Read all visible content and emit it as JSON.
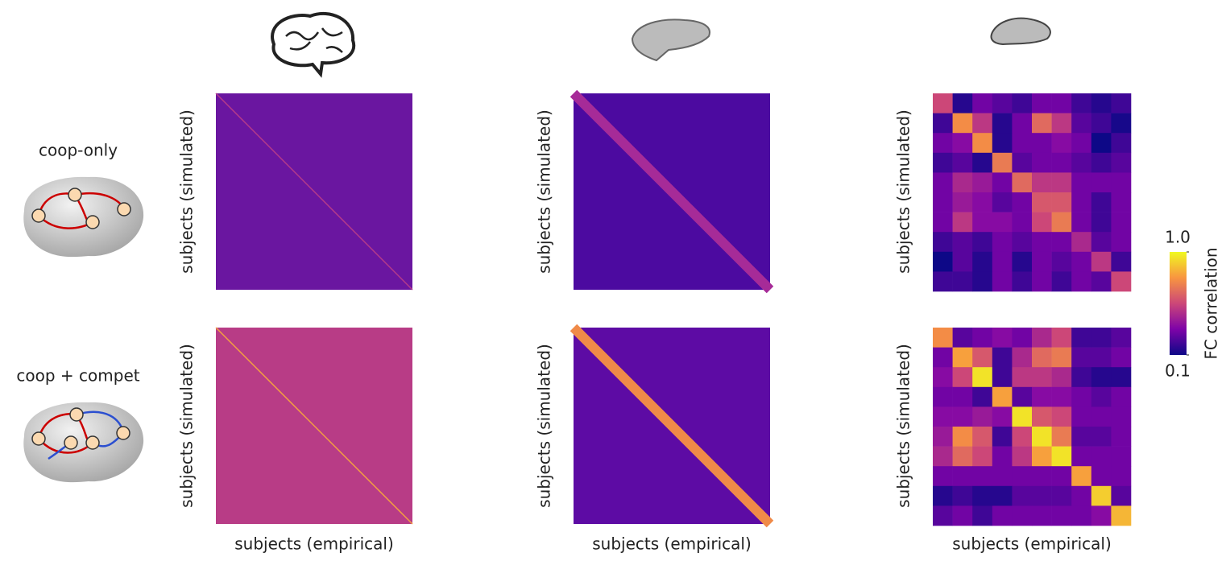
{
  "rows": [
    "coop-only",
    "coop + compet"
  ],
  "x_label": "subjects (empirical)",
  "y_label": "subjects (simulated)",
  "colorbar": {
    "label": "FC correlation",
    "lim": [
      0.1,
      1.0
    ],
    "ticks": [
      0.1,
      {
        "value": 1.0,
        "label": "1.0"
      }
    ]
  },
  "chart_data": [
    {
      "type": "heatmap",
      "values": [
        [
          0.55,
          0.15,
          0.3,
          0.25,
          0.2,
          0.3,
          0.3,
          0.2,
          0.15,
          0.2
        ],
        [
          0.2,
          0.75,
          0.5,
          0.15,
          0.3,
          0.65,
          0.5,
          0.25,
          0.2,
          0.12
        ],
        [
          0.3,
          0.35,
          0.75,
          0.15,
          0.3,
          0.3,
          0.35,
          0.3,
          0.1,
          0.2
        ],
        [
          0.2,
          0.25,
          0.15,
          0.7,
          0.25,
          0.3,
          0.3,
          0.25,
          0.2,
          0.25
        ],
        [
          0.3,
          0.45,
          0.4,
          0.3,
          0.65,
          0.5,
          0.5,
          0.3,
          0.3,
          0.3
        ],
        [
          0.3,
          0.4,
          0.35,
          0.25,
          0.3,
          0.6,
          0.6,
          0.3,
          0.2,
          0.3
        ],
        [
          0.3,
          0.5,
          0.35,
          0.35,
          0.3,
          0.55,
          0.7,
          0.3,
          0.2,
          0.3
        ],
        [
          0.2,
          0.25,
          0.2,
          0.3,
          0.25,
          0.3,
          0.3,
          0.45,
          0.25,
          0.3
        ],
        [
          0.1,
          0.25,
          0.15,
          0.3,
          0.15,
          0.3,
          0.25,
          0.3,
          0.5,
          0.2
        ],
        [
          0.2,
          0.2,
          0.15,
          0.3,
          0.2,
          0.3,
          0.2,
          0.3,
          0.25,
          0.55
        ]
      ]
    },
    {
      "type": "heatmap",
      "values": [
        [
          0.75,
          0.25,
          0.3,
          0.35,
          0.3,
          0.45,
          0.55,
          0.2,
          0.2,
          0.25
        ],
        [
          0.3,
          0.8,
          0.6,
          0.2,
          0.45,
          0.65,
          0.7,
          0.25,
          0.25,
          0.3
        ],
        [
          0.35,
          0.55,
          0.95,
          0.2,
          0.5,
          0.5,
          0.45,
          0.2,
          0.15,
          0.15
        ],
        [
          0.3,
          0.3,
          0.2,
          0.8,
          0.25,
          0.35,
          0.35,
          0.3,
          0.25,
          0.3
        ],
        [
          0.35,
          0.35,
          0.4,
          0.35,
          0.95,
          0.6,
          0.55,
          0.3,
          0.3,
          0.3
        ],
        [
          0.4,
          0.75,
          0.6,
          0.2,
          0.55,
          0.95,
          0.7,
          0.25,
          0.25,
          0.3
        ],
        [
          0.45,
          0.65,
          0.55,
          0.3,
          0.5,
          0.8,
          0.95,
          0.3,
          0.3,
          0.3
        ],
        [
          0.3,
          0.3,
          0.3,
          0.3,
          0.3,
          0.3,
          0.3,
          0.8,
          0.3,
          0.3
        ],
        [
          0.15,
          0.2,
          0.15,
          0.15,
          0.25,
          0.25,
          0.25,
          0.3,
          0.9,
          0.25
        ],
        [
          0.25,
          0.3,
          0.2,
          0.3,
          0.3,
          0.3,
          0.3,
          0.3,
          0.35,
          0.85
        ]
      ]
    }
  ]
}
